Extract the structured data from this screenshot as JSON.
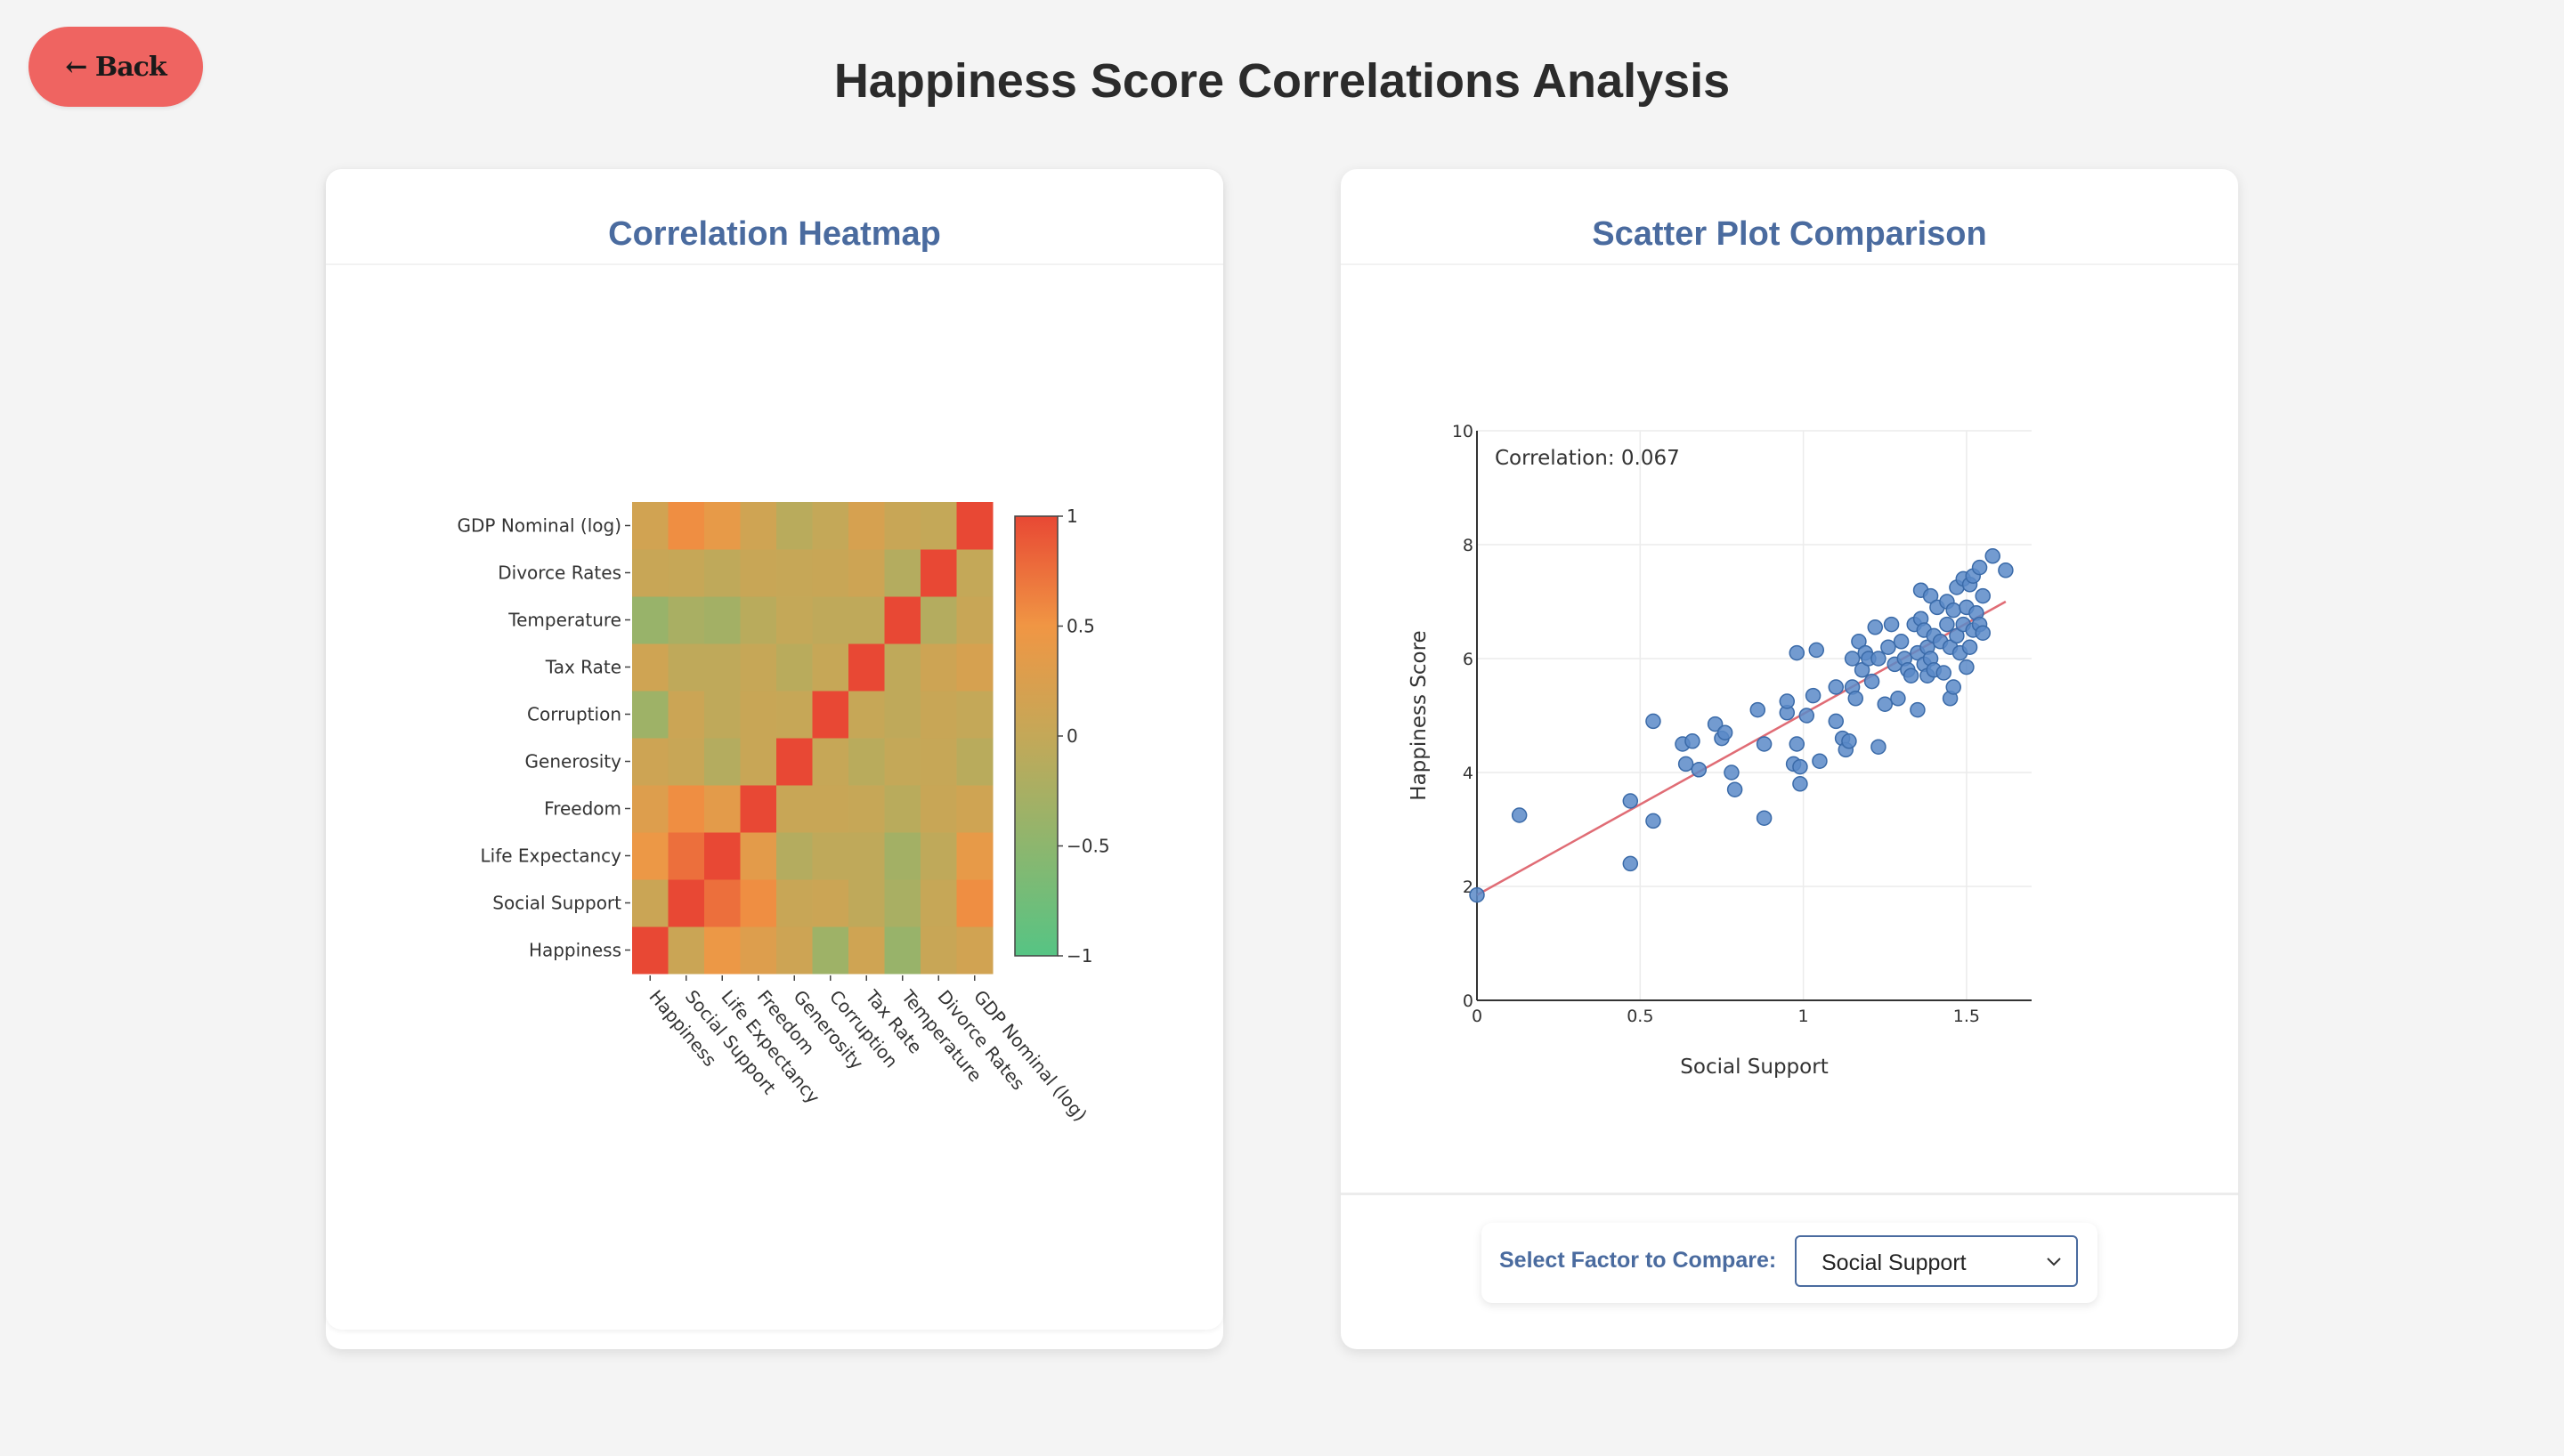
{
  "header": {
    "back_label": "← Back",
    "title": "Happiness Score Correlations Analysis"
  },
  "heatmap_card": {
    "title": "Correlation Heatmap"
  },
  "scatter_card": {
    "title": "Scatter Plot Comparison"
  },
  "selector": {
    "label": "Select Factor to Compare:",
    "value": "Social Support"
  },
  "colors": {
    "accent": "#4a6b9f",
    "back_button": "#ef6461",
    "point": "#5b8ac8",
    "trend": "#e06c75"
  },
  "chart_data": [
    {
      "type": "heatmap",
      "labels": [
        "Happiness",
        "Social Support",
        "Life Expectancy",
        "Freedom",
        "Generosity",
        "Corruption",
        "Tax Rate",
        "Temperature",
        "Divorce Rates",
        "GDP Nominal (log)"
      ],
      "matrix": [
        [
          1.0,
          0.07,
          0.45,
          0.28,
          0.1,
          -0.35,
          0.12,
          -0.4,
          0.05,
          0.15
        ],
        [
          0.07,
          1.0,
          0.75,
          0.55,
          0.05,
          0.08,
          -0.05,
          -0.25,
          0.02,
          0.55
        ],
        [
          0.45,
          0.75,
          1.0,
          0.35,
          -0.15,
          -0.05,
          -0.05,
          -0.3,
          -0.05,
          0.4
        ],
        [
          0.28,
          0.55,
          0.35,
          1.0,
          0.05,
          0.05,
          0.02,
          -0.1,
          0.05,
          0.12
        ],
        [
          0.1,
          0.05,
          -0.15,
          0.05,
          1.0,
          0.02,
          -0.1,
          0.0,
          0.02,
          -0.1
        ],
        [
          -0.35,
          0.08,
          -0.05,
          0.05,
          0.02,
          1.0,
          0.02,
          -0.05,
          0.05,
          0.0
        ],
        [
          0.12,
          -0.05,
          -0.05,
          0.02,
          -0.1,
          0.02,
          1.0,
          -0.05,
          0.1,
          0.2
        ],
        [
          -0.4,
          -0.25,
          -0.3,
          -0.1,
          0.0,
          -0.05,
          -0.05,
          1.0,
          -0.15,
          0.05
        ],
        [
          0.05,
          0.02,
          -0.05,
          0.05,
          0.02,
          0.05,
          0.1,
          -0.15,
          1.0,
          0.0
        ],
        [
          0.15,
          0.55,
          0.4,
          0.12,
          -0.1,
          0.0,
          0.2,
          0.05,
          0.0,
          1.0
        ]
      ],
      "colorbar": {
        "range": [
          -1,
          1
        ],
        "ticks": [
          "1",
          "0.5",
          "0",
          "−0.5",
          "−1"
        ]
      }
    },
    {
      "type": "scatter",
      "xlabel": "Social Support",
      "ylabel": "Happiness Score",
      "xlim": [
        0,
        1.7
      ],
      "ylim": [
        0,
        10
      ],
      "x_ticks": [
        "0",
        "0.5",
        "1",
        "1.5"
      ],
      "y_ticks": [
        "0",
        "2",
        "4",
        "6",
        "8",
        "10"
      ],
      "annotation": "Correlation: 0.067",
      "trendline": {
        "x": [
          0,
          1.62
        ],
        "y": [
          1.85,
          7.0
        ]
      },
      "points": [
        [
          0.0,
          1.85
        ],
        [
          0.13,
          3.25
        ],
        [
          0.47,
          3.5
        ],
        [
          0.47,
          2.4
        ],
        [
          0.54,
          4.9
        ],
        [
          0.54,
          3.15
        ],
        [
          0.63,
          4.5
        ],
        [
          0.64,
          4.15
        ],
        [
          0.66,
          4.55
        ],
        [
          0.68,
          4.05
        ],
        [
          0.73,
          4.85
        ],
        [
          0.75,
          4.6
        ],
        [
          0.76,
          4.7
        ],
        [
          0.78,
          4.0
        ],
        [
          0.79,
          3.7
        ],
        [
          0.86,
          5.1
        ],
        [
          0.88,
          3.2
        ],
        [
          0.88,
          4.5
        ],
        [
          0.95,
          5.05
        ],
        [
          0.95,
          5.25
        ],
        [
          0.97,
          4.15
        ],
        [
          0.98,
          4.5
        ],
        [
          0.98,
          6.1
        ],
        [
          0.99,
          4.1
        ],
        [
          0.99,
          3.8
        ],
        [
          1.01,
          5.0
        ],
        [
          1.03,
          5.35
        ],
        [
          1.04,
          6.15
        ],
        [
          1.05,
          4.2
        ],
        [
          1.1,
          5.5
        ],
        [
          1.1,
          4.9
        ],
        [
          1.12,
          4.6
        ],
        [
          1.13,
          4.4
        ],
        [
          1.14,
          4.55
        ],
        [
          1.15,
          6.0
        ],
        [
          1.15,
          5.5
        ],
        [
          1.16,
          5.3
        ],
        [
          1.17,
          6.3
        ],
        [
          1.18,
          5.8
        ],
        [
          1.19,
          6.1
        ],
        [
          1.2,
          6.0
        ],
        [
          1.21,
          5.6
        ],
        [
          1.22,
          6.55
        ],
        [
          1.23,
          4.45
        ],
        [
          1.23,
          6.0
        ],
        [
          1.25,
          5.2
        ],
        [
          1.26,
          6.2
        ],
        [
          1.27,
          6.6
        ],
        [
          1.28,
          5.9
        ],
        [
          1.29,
          5.3
        ],
        [
          1.3,
          6.3
        ],
        [
          1.31,
          6.0
        ],
        [
          1.32,
          5.8
        ],
        [
          1.33,
          5.7
        ],
        [
          1.34,
          6.6
        ],
        [
          1.35,
          6.1
        ],
        [
          1.35,
          5.1
        ],
        [
          1.36,
          7.2
        ],
        [
          1.36,
          6.7
        ],
        [
          1.37,
          5.9
        ],
        [
          1.37,
          6.5
        ],
        [
          1.38,
          6.2
        ],
        [
          1.38,
          5.7
        ],
        [
          1.39,
          7.1
        ],
        [
          1.39,
          6.0
        ],
        [
          1.4,
          6.4
        ],
        [
          1.4,
          5.8
        ],
        [
          1.41,
          6.9
        ],
        [
          1.42,
          6.3
        ],
        [
          1.43,
          5.75
        ],
        [
          1.44,
          6.6
        ],
        [
          1.44,
          7.0
        ],
        [
          1.45,
          6.2
        ],
        [
          1.45,
          5.3
        ],
        [
          1.46,
          6.85
        ],
        [
          1.46,
          5.5
        ],
        [
          1.47,
          7.25
        ],
        [
          1.47,
          6.4
        ],
        [
          1.48,
          6.1
        ],
        [
          1.49,
          7.4
        ],
        [
          1.49,
          6.6
        ],
        [
          1.5,
          6.9
        ],
        [
          1.5,
          5.85
        ],
        [
          1.51,
          7.3
        ],
        [
          1.51,
          6.2
        ],
        [
          1.52,
          7.45
        ],
        [
          1.52,
          6.5
        ],
        [
          1.53,
          6.8
        ],
        [
          1.54,
          7.6
        ],
        [
          1.54,
          6.6
        ],
        [
          1.55,
          7.1
        ],
        [
          1.55,
          6.45
        ],
        [
          1.58,
          7.8
        ],
        [
          1.62,
          7.55
        ]
      ]
    }
  ]
}
